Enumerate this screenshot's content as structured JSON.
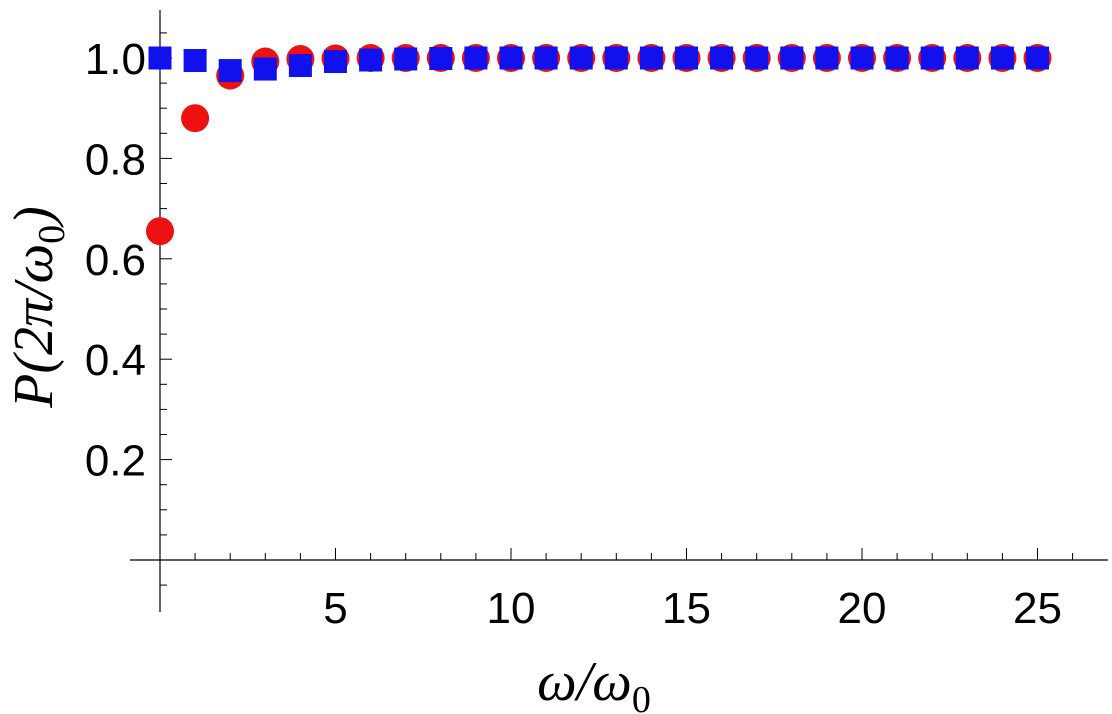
{
  "chart_data": {
    "type": "scatter",
    "title": "",
    "xlabel": {
      "main": "ω/ω",
      "sub": "0"
    },
    "ylabel": {
      "main": "P(2π/ω",
      "sub": "0",
      "tail": ")"
    },
    "xlim": [
      -0.8,
      27.2
    ],
    "ylim": [
      -0.1,
      1.1
    ],
    "x_ticks": [
      5,
      10,
      15,
      20,
      25
    ],
    "y_ticks": [
      0.2,
      0.4,
      0.6,
      0.8,
      1.0
    ],
    "x_tick_labels": [
      "5",
      "10",
      "15",
      "20",
      "25"
    ],
    "y_tick_labels": [
      "0.2",
      "0.4",
      "0.6",
      "0.8",
      "1.0"
    ],
    "x_minor_step": 1,
    "y_minor_step": 0.05,
    "grid": false,
    "legend": "none",
    "series": [
      {
        "marker": "circle",
        "color": "#ee1111",
        "x": [
          0,
          1,
          2,
          3,
          4,
          5,
          6,
          7,
          8,
          9,
          10,
          11,
          12,
          13,
          14,
          15,
          16,
          17,
          18,
          19,
          20,
          21,
          22,
          23,
          24,
          25
        ],
        "y": [
          0.655,
          0.88,
          0.965,
          0.993,
          0.998,
          0.999,
          1.0,
          1.0,
          1.0,
          1.0,
          1.0,
          1.0,
          1.0,
          1.0,
          1.0,
          1.0,
          1.0,
          1.0,
          1.0,
          1.0,
          1.0,
          1.0,
          1.0,
          1.0,
          1.0,
          1.0
        ]
      },
      {
        "marker": "square",
        "color": "#1111ee",
        "x": [
          0,
          1,
          2,
          3,
          4,
          5,
          6,
          7,
          8,
          9,
          10,
          11,
          12,
          13,
          14,
          15,
          16,
          17,
          18,
          19,
          20,
          21,
          22,
          23,
          24,
          25
        ],
        "y": [
          1.0,
          0.995,
          0.975,
          0.978,
          0.985,
          0.993,
          0.996,
          0.998,
          0.999,
          1.0,
          1.0,
          1.0,
          1.0,
          1.0,
          1.0,
          1.0,
          1.0,
          1.0,
          1.0,
          1.0,
          1.0,
          1.0,
          1.0,
          1.0,
          1.0,
          1.0
        ]
      }
    ]
  }
}
